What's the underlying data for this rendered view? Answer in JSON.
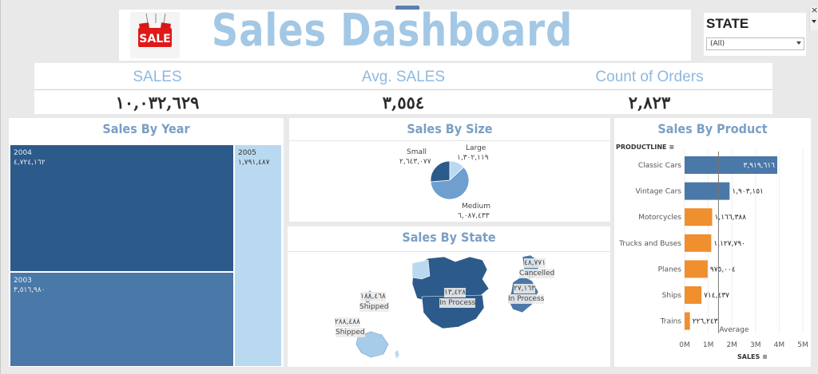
{
  "header": {
    "title": "Sales Dashboard",
    "logo_text": "SALE",
    "filter_label": "STATE",
    "filter_value": "(All)"
  },
  "kpis": [
    {
      "label": "SALES",
      "value": "١٠,٠٣٢,٦٢٩"
    },
    {
      "label": "Avg. SALES",
      "value": "٣,٥٥٤"
    },
    {
      "label": "Count of Orders",
      "value": "٢,٨٢٣"
    }
  ],
  "sales_by_year": {
    "title": "Sales By Year",
    "cells": [
      {
        "year": "2004",
        "value": "٤,٧٢٤,١٦٢"
      },
      {
        "year": "2003",
        "value": "٣,٥١٦,٩٨٠"
      },
      {
        "year": "2005",
        "value": "١,٧٩١,٤٨٧"
      }
    ]
  },
  "sales_by_size": {
    "title": "Sales By Size",
    "slices": [
      {
        "name": "Small",
        "value": "٢,٦٤٣,٠٧٧",
        "amount": 2643077,
        "color": "#2c5a8a"
      },
      {
        "name": "Large",
        "value": "١,٣٠٢,١١٩",
        "amount": 1302119,
        "color": "#b9d9f0"
      },
      {
        "name": "Medium",
        "value": "٦,٠٨٧,٤٣٣",
        "amount": 6087433,
        "color": "#6e9fcf"
      }
    ]
  },
  "sales_by_state": {
    "title": "Sales By State",
    "markers": [
      {
        "value": "١٨٨,٤٦٨",
        "status": "Shipped"
      },
      {
        "value": "٢٨٨,٤٨٨",
        "status": "Shipped"
      },
      {
        "value": "١٣,٤٢٨",
        "status": "In Process"
      },
      {
        "value": "٤٨,٧٧١",
        "status": "Cancelled"
      },
      {
        "value": "٢٧,١٦٣",
        "status": "In Process"
      }
    ]
  },
  "sales_by_product": {
    "title": "Sales By Product",
    "axis_header": "PRODUCTLINE",
    "x_axis_label": "SALES",
    "average_label": "Average",
    "ticks": [
      "0M",
      "1M",
      "2M",
      "3M",
      "4M",
      "5M"
    ]
  },
  "chart_data": {
    "type": "bar",
    "orientation": "horizontal",
    "title": "Sales By Product",
    "categories": [
      "Classic Cars",
      "Vintage Cars",
      "Motorcycles",
      "Trucks and Buses",
      "Planes",
      "Ships",
      "Trains"
    ],
    "values": [
      3919616,
      1903151,
      1166388,
      1127790,
      975004,
      714437,
      226243
    ],
    "value_labels": [
      "٣,٩١٩,٦١٦",
      "١,٩٠٣,١٥١",
      "١,١٦٦,٣٨٨",
      "١,١٢٧,٧٩٠",
      "٩٧٥,٠٠٤",
      "٧١٤,٤٣٧",
      "٢٢٦,٢٤٣"
    ],
    "colors": [
      "#4a78a8",
      "#4a78a8",
      "#ef8f2e",
      "#ef8f2e",
      "#ef8f2e",
      "#ef8f2e",
      "#ef8f2e"
    ],
    "xlabel": "SALES",
    "ylabel": "PRODUCTLINE",
    "xlim": [
      0,
      5000000
    ],
    "reference_line": {
      "label": "Average",
      "value": 1433233
    }
  }
}
